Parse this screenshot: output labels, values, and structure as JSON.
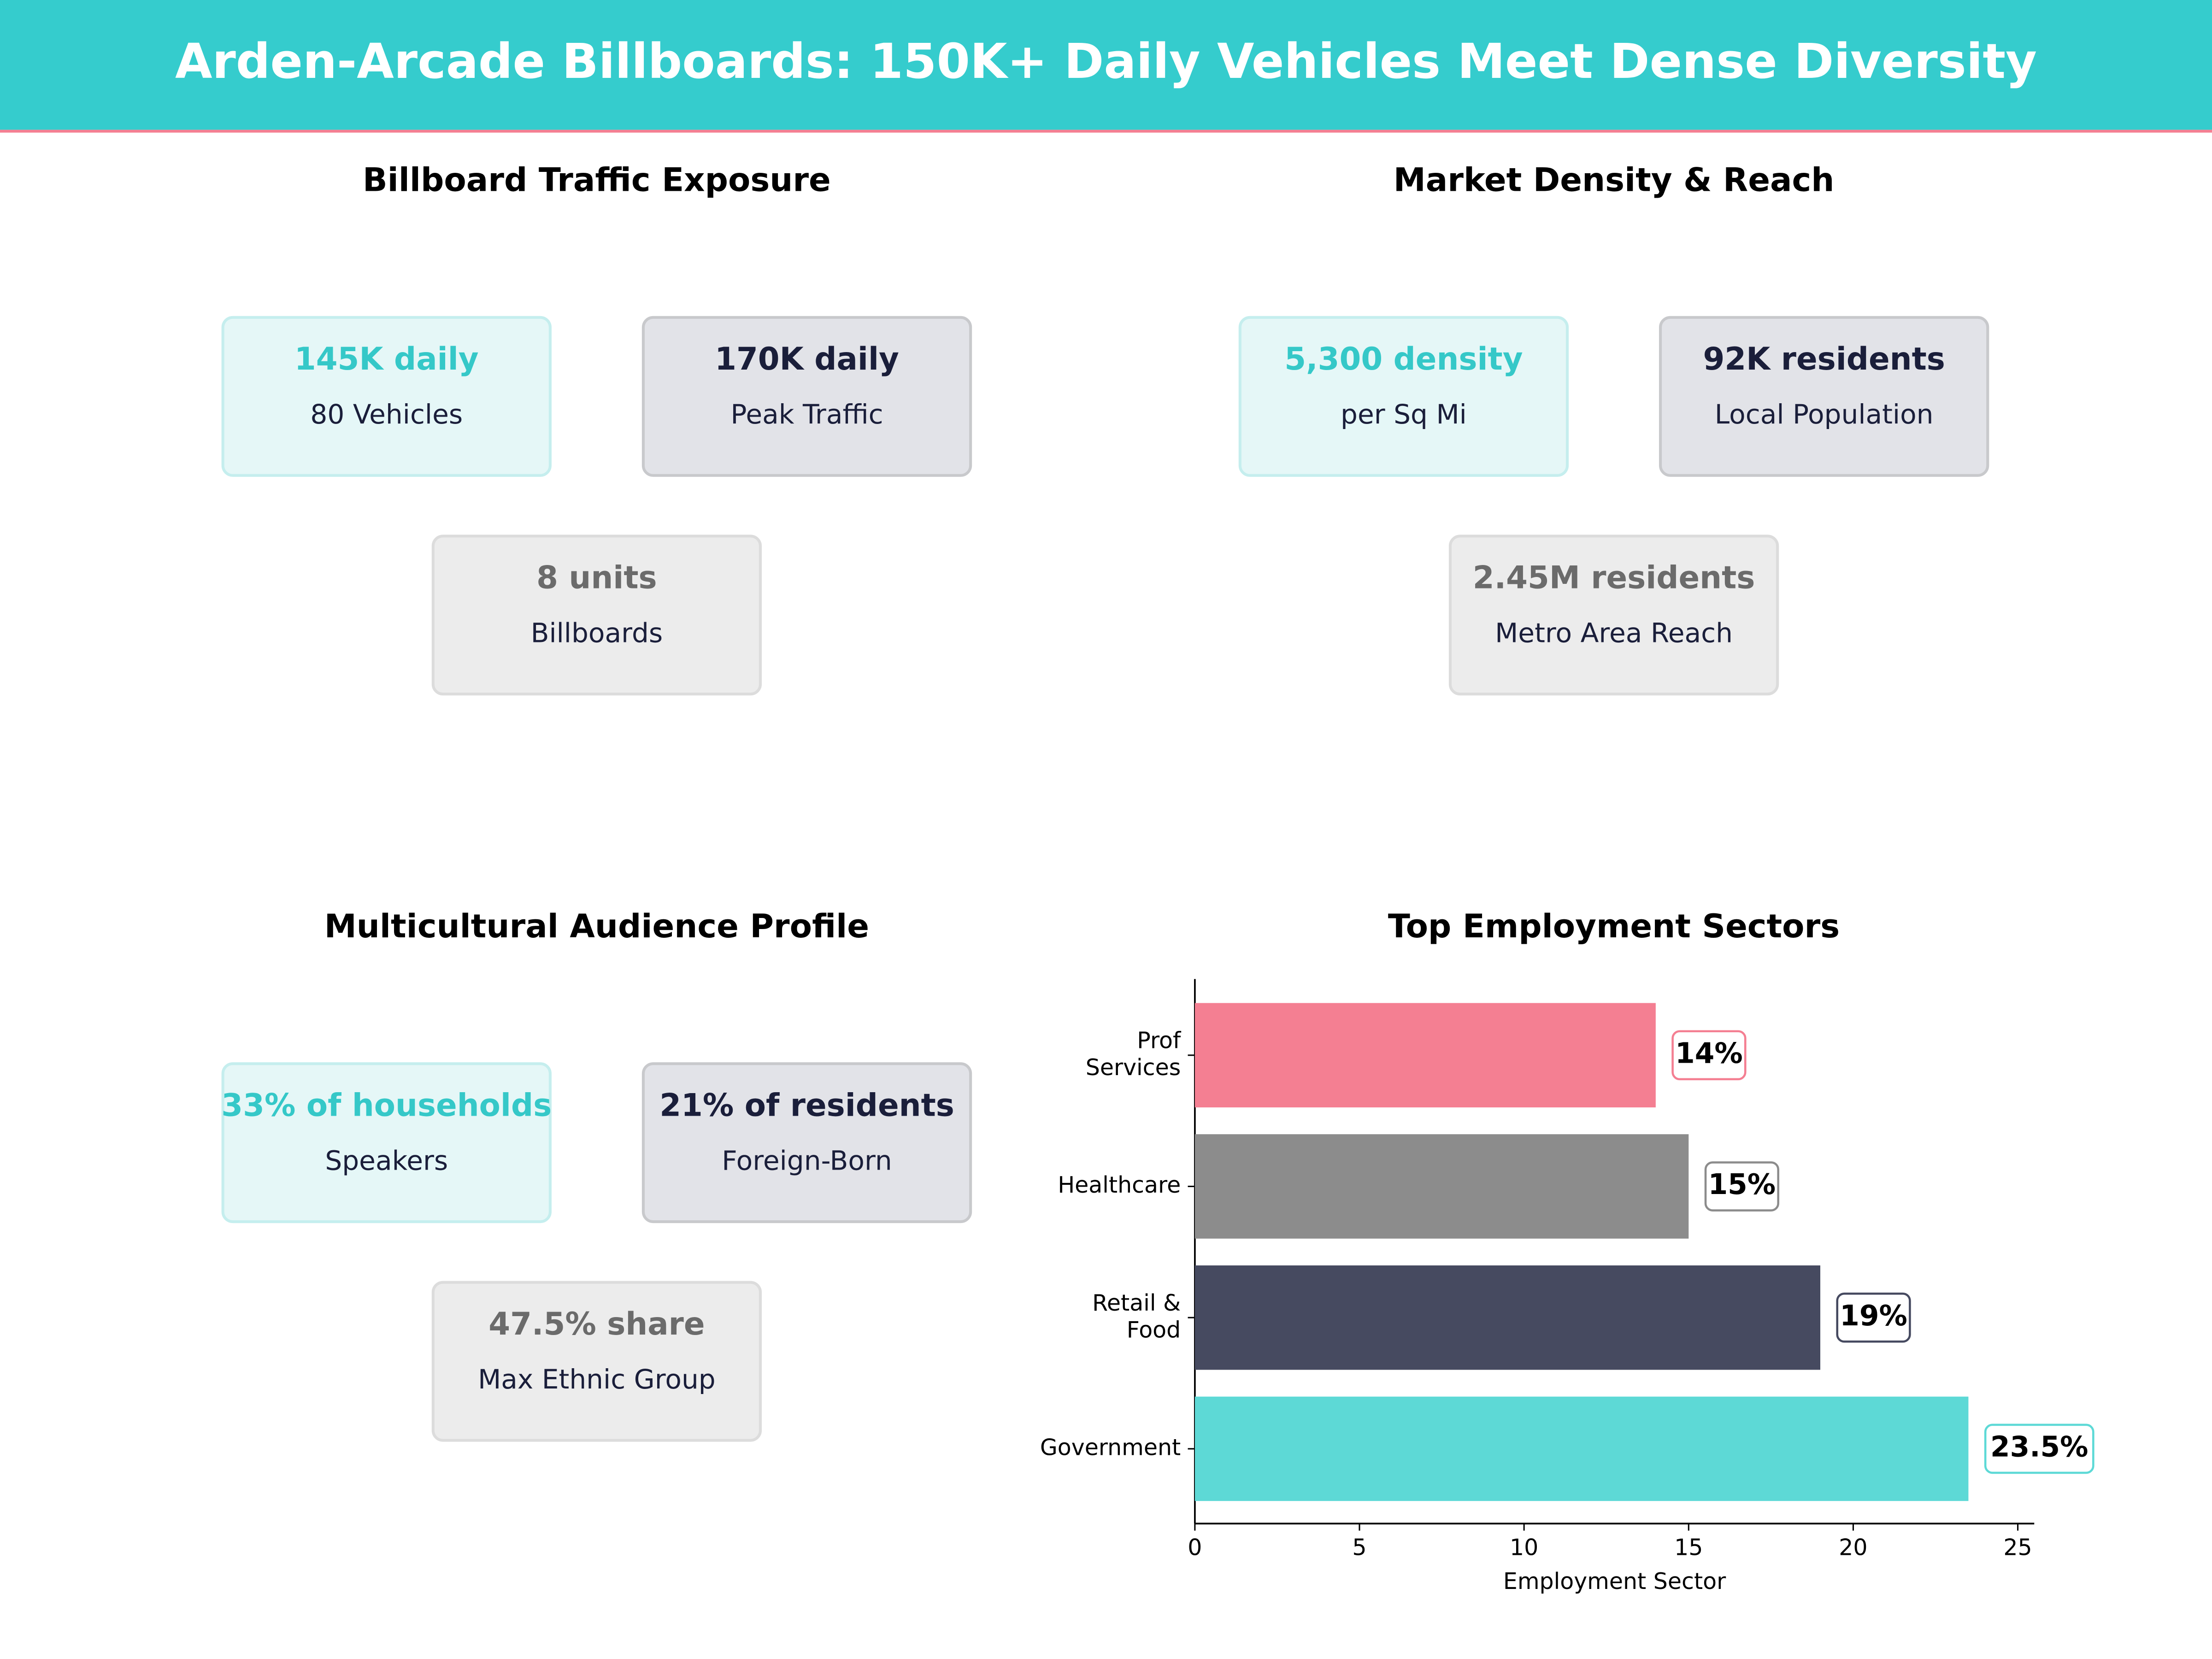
{
  "header": {
    "title": "Arden-Arcade Billboards: 150K+ Daily Vehicles Meet Dense Diversity"
  },
  "panels": [
    {
      "title": "Billboard Traffic Exposure",
      "cards": [
        {
          "value": "145K daily",
          "label": "80 Vehicles"
        },
        {
          "value": "170K daily",
          "label": "Peak Traffic"
        },
        {
          "value": "8 units",
          "label": "Billboards"
        }
      ]
    },
    {
      "title": "Market Density & Reach",
      "cards": [
        {
          "value": "5,300 density",
          "label": "per Sq Mi"
        },
        {
          "value": "92K residents",
          "label": "Local Population"
        },
        {
          "value": "2.45M residents",
          "label": "Metro Area Reach"
        }
      ]
    },
    {
      "title": "Multicultural Audience Profile",
      "cards": [
        {
          "value": "33% of households",
          "label": "Speakers"
        },
        {
          "value": "21% of residents",
          "label": "Foreign-Born"
        },
        {
          "value": "47.5% share",
          "label": "Max Ethnic Group"
        }
      ]
    }
  ],
  "chart_data": {
    "type": "bar",
    "orientation": "horizontal",
    "title": "Top Employment Sectors",
    "x_label": "Employment Sector",
    "categories": [
      "Government",
      "Retail &\nFood",
      "Healthcare",
      "Prof\nServices"
    ],
    "values": [
      23.5,
      19,
      15,
      14
    ],
    "value_labels": [
      "23.5%",
      "19%",
      "15%",
      "14%"
    ],
    "colors": [
      "#5dd9d6",
      "#464a60",
      "#8c8c8c",
      "#f47f92"
    ],
    "xlim": [
      0,
      25.5
    ],
    "xticks": [
      0,
      5,
      10,
      15,
      20,
      25
    ]
  }
}
